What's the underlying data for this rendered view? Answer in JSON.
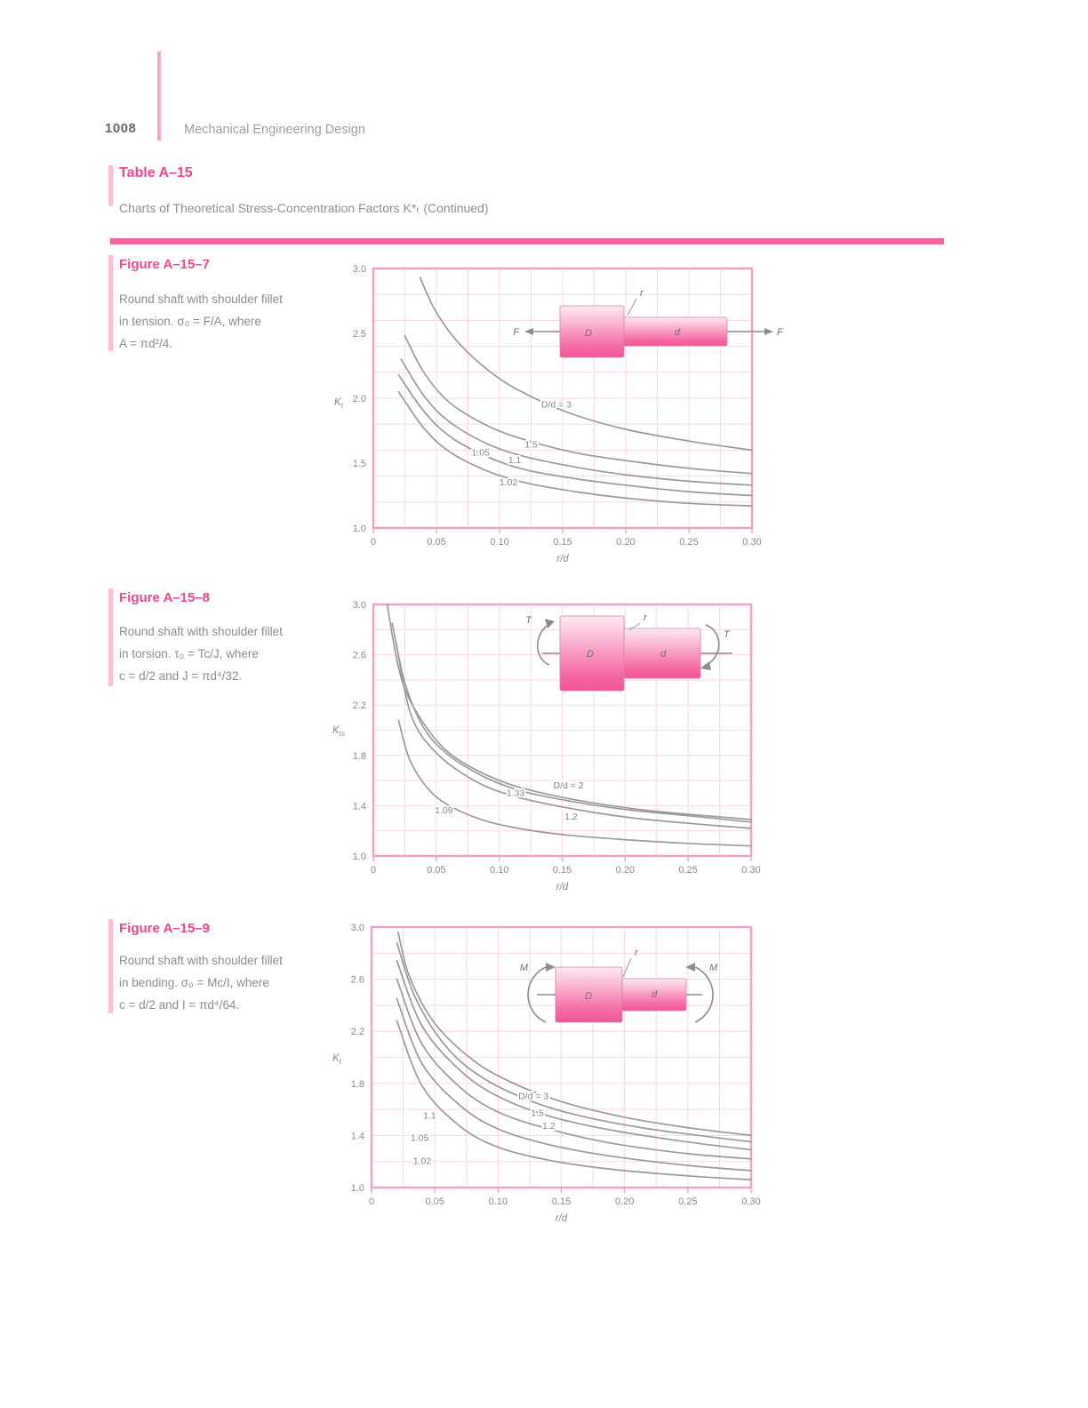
{
  "page": {
    "number": "1008",
    "running_header": "Mechanical Engineering Design"
  },
  "table": {
    "label": "Table A–15",
    "title": "Charts of Theoretical Stress-Concentration Factors K*ₜ (Continued)"
  },
  "colors": {
    "accent_pink": "#ee4890",
    "rule_pink": "#f0669f",
    "frame_pink": "#f49fc6",
    "grid_pink": "#fbd9e8",
    "curve_gray": "#9a9a9a",
    "text_gray": "#8a8a8a",
    "shaft_pink_light": "#fde9f2",
    "shaft_pink_dark": "#f2559a"
  },
  "figures": [
    {
      "title": "Figure A–15–7",
      "caption_lines": [
        "Round shaft with shoulder fillet",
        "in tension. σ₀ = F/A, where",
        "A = πd²/4."
      ],
      "inset": {
        "left_label": "F",
        "right_label": "F",
        "big_label": "D",
        "small_label": "d",
        "fillet_label": "r"
      }
    },
    {
      "title": "Figure A–15–8",
      "caption_lines": [
        "Round shaft with shoulder fillet",
        "in torsion. τ₀ = Tc/J, where",
        "c = d/2 and J = πd⁴/32."
      ],
      "inset": {
        "left_label": "T",
        "right_label": "T",
        "big_label": "D",
        "small_label": "d",
        "fillet_label": "r"
      }
    },
    {
      "title": "Figure A–15–9",
      "caption_lines": [
        "Round shaft with shoulder fillet",
        "in bending. σ₀ = Mc/I, where",
        "c = d/2 and I = πd⁴/64."
      ],
      "inset": {
        "left_label": "M",
        "right_label": "M",
        "big_label": "D",
        "small_label": "d",
        "fillet_label": "r"
      }
    }
  ],
  "chart_data": [
    {
      "type": "line",
      "figure": "A–15–7",
      "title": "Round shaft with shoulder fillet in tension",
      "xlabel": "r/d",
      "ylabel": "Kt",
      "xlim": [
        0,
        0.3
      ],
      "ylim": [
        1.0,
        3.0
      ],
      "xticks": [
        "0",
        "0.05",
        "0.10",
        "0.15",
        "0.20",
        "0.25",
        "0.30"
      ],
      "yticks": [
        "3.0",
        "2.5",
        "2.0",
        "1.5",
        "1.0"
      ],
      "grid_step": {
        "x": 0.025,
        "y": 0.2
      },
      "legend_position": "on-curve",
      "series": [
        {
          "name": "D/d = 3",
          "points": [
            [
              0.037,
              2.93
            ],
            [
              0.05,
              2.66
            ],
            [
              0.07,
              2.4
            ],
            [
              0.1,
              2.15
            ],
            [
              0.13,
              1.99
            ],
            [
              0.16,
              1.87
            ],
            [
              0.2,
              1.76
            ],
            [
              0.25,
              1.67
            ],
            [
              0.3,
              1.6
            ]
          ]
        },
        {
          "name": "1.5",
          "points": [
            [
              0.025,
              2.48
            ],
            [
              0.04,
              2.2
            ],
            [
              0.06,
              1.97
            ],
            [
              0.09,
              1.79
            ],
            [
              0.12,
              1.68
            ],
            [
              0.16,
              1.58
            ],
            [
              0.2,
              1.52
            ],
            [
              0.25,
              1.46
            ],
            [
              0.3,
              1.42
            ]
          ]
        },
        {
          "name": "1.1",
          "points": [
            [
              0.022,
              2.3
            ],
            [
              0.04,
              2.02
            ],
            [
              0.06,
              1.82
            ],
            [
              0.09,
              1.65
            ],
            [
              0.12,
              1.55
            ],
            [
              0.16,
              1.47
            ],
            [
              0.2,
              1.41
            ],
            [
              0.25,
              1.36
            ],
            [
              0.3,
              1.33
            ]
          ]
        },
        {
          "name": "1.05",
          "points": [
            [
              0.02,
              2.18
            ],
            [
              0.04,
              1.9
            ],
            [
              0.06,
              1.71
            ],
            [
              0.09,
              1.55
            ],
            [
              0.12,
              1.45
            ],
            [
              0.16,
              1.38
            ],
            [
              0.2,
              1.33
            ],
            [
              0.25,
              1.28
            ],
            [
              0.3,
              1.25
            ]
          ]
        },
        {
          "name": "1.02",
          "points": [
            [
              0.02,
              2.05
            ],
            [
              0.04,
              1.77
            ],
            [
              0.06,
              1.59
            ],
            [
              0.09,
              1.44
            ],
            [
              0.12,
              1.35
            ],
            [
              0.16,
              1.28
            ],
            [
              0.2,
              1.23
            ],
            [
              0.25,
              1.19
            ],
            [
              0.3,
              1.17
            ]
          ]
        }
      ],
      "curve_labels": [
        {
          "text": "D/d = 3",
          "x": 0.145,
          "y": 1.95
        },
        {
          "text": "1.5",
          "x": 0.125,
          "y": 1.64
        },
        {
          "text": "1.1",
          "x": 0.112,
          "y": 1.52
        },
        {
          "text": "1.05",
          "x": 0.085,
          "y": 1.58
        },
        {
          "text": "1.02",
          "x": 0.107,
          "y": 1.35
        }
      ]
    },
    {
      "type": "line",
      "figure": "A–15–8",
      "title": "Round shaft with shoulder fillet in torsion",
      "xlabel": "r/d",
      "ylabel": "Kts",
      "xlim": [
        0,
        0.3
      ],
      "ylim": [
        1.0,
        3.0
      ],
      "xticks": [
        "0",
        "0.05",
        "0.10",
        "0.15",
        "0.20",
        "0.25",
        "0.30"
      ],
      "yticks": [
        "3.0",
        "2.6",
        "2.2",
        "1.8",
        "1.4",
        "1.0"
      ],
      "grid_step": {
        "x": 0.025,
        "y": 0.2
      },
      "legend_position": "on-curve",
      "series": [
        {
          "name": "D/d = 2",
          "points": [
            [
              0.011,
              3.0
            ],
            [
              0.02,
              2.5
            ],
            [
              0.03,
              2.22
            ],
            [
              0.05,
              1.92
            ],
            [
              0.07,
              1.75
            ],
            [
              0.1,
              1.6
            ],
            [
              0.13,
              1.51
            ],
            [
              0.17,
              1.43
            ],
            [
              0.22,
              1.36
            ],
            [
              0.3,
              1.29
            ]
          ]
        },
        {
          "name": "1.33",
          "points": [
            [
              0.015,
              2.85
            ],
            [
              0.025,
              2.38
            ],
            [
              0.04,
              2.02
            ],
            [
              0.06,
              1.8
            ],
            [
              0.09,
              1.62
            ],
            [
              0.12,
              1.51
            ],
            [
              0.16,
              1.43
            ],
            [
              0.2,
              1.37
            ],
            [
              0.25,
              1.32
            ],
            [
              0.3,
              1.27
            ]
          ]
        },
        {
          "name": "1.2",
          "points": [
            [
              0.018,
              2.7
            ],
            [
              0.03,
              2.12
            ],
            [
              0.05,
              1.82
            ],
            [
              0.08,
              1.6
            ],
            [
              0.11,
              1.48
            ],
            [
              0.15,
              1.39
            ],
            [
              0.2,
              1.31
            ],
            [
              0.25,
              1.26
            ],
            [
              0.3,
              1.22
            ]
          ]
        },
        {
          "name": "1.09",
          "points": [
            [
              0.02,
              2.08
            ],
            [
              0.03,
              1.74
            ],
            [
              0.05,
              1.47
            ],
            [
              0.08,
              1.31
            ],
            [
              0.11,
              1.23
            ],
            [
              0.15,
              1.17
            ],
            [
              0.2,
              1.13
            ],
            [
              0.25,
              1.1
            ],
            [
              0.3,
              1.08
            ]
          ]
        }
      ],
      "curve_labels": [
        {
          "text": "D/d = 2",
          "x": 0.155,
          "y": 1.56
        },
        {
          "text": "1.33",
          "x": 0.113,
          "y": 1.5
        },
        {
          "text": "1.2",
          "x": 0.157,
          "y": 1.31
        },
        {
          "text": "1.09",
          "x": 0.056,
          "y": 1.36
        }
      ]
    },
    {
      "type": "line",
      "figure": "A–15–9",
      "title": "Round shaft with shoulder fillet in bending",
      "xlabel": "r/d",
      "ylabel": "Kt",
      "xlim": [
        0,
        0.3
      ],
      "ylim": [
        1.0,
        3.0
      ],
      "xticks": [
        "0",
        "0.05",
        "0.10",
        "0.15",
        "0.20",
        "0.25",
        "0.30"
      ],
      "yticks": [
        "3.0",
        "2.6",
        "2.2",
        "1.8",
        "1.4",
        "1.0"
      ],
      "grid_step": {
        "x": 0.025,
        "y": 0.2
      },
      "legend_position": "on-curve",
      "series": [
        {
          "name": "D/d = 3",
          "points": [
            [
              0.021,
              2.96
            ],
            [
              0.03,
              2.62
            ],
            [
              0.05,
              2.26
            ],
            [
              0.08,
              1.98
            ],
            [
              0.11,
              1.81
            ],
            [
              0.15,
              1.66
            ],
            [
              0.2,
              1.54
            ],
            [
              0.25,
              1.46
            ],
            [
              0.3,
              1.4
            ]
          ]
        },
        {
          "name": "1.5",
          "points": [
            [
              0.02,
              2.88
            ],
            [
              0.035,
              2.45
            ],
            [
              0.06,
              2.07
            ],
            [
              0.09,
              1.83
            ],
            [
              0.13,
              1.65
            ],
            [
              0.17,
              1.54
            ],
            [
              0.22,
              1.45
            ],
            [
              0.3,
              1.35
            ]
          ]
        },
        {
          "name": "1.2",
          "points": [
            [
              0.02,
              2.74
            ],
            [
              0.04,
              2.24
            ],
            [
              0.07,
              1.9
            ],
            [
              0.1,
              1.7
            ],
            [
              0.14,
              1.55
            ],
            [
              0.19,
              1.44
            ],
            [
              0.25,
              1.35
            ],
            [
              0.3,
              1.29
            ]
          ]
        },
        {
          "name": "1.1",
          "points": [
            [
              0.02,
              2.6
            ],
            [
              0.04,
              2.1
            ],
            [
              0.07,
              1.77
            ],
            [
              0.1,
              1.58
            ],
            [
              0.14,
              1.45
            ],
            [
              0.19,
              1.34
            ],
            [
              0.25,
              1.26
            ],
            [
              0.3,
              1.22
            ]
          ]
        },
        {
          "name": "1.05",
          "points": [
            [
              0.02,
              2.45
            ],
            [
              0.04,
              1.95
            ],
            [
              0.07,
              1.63
            ],
            [
              0.1,
              1.45
            ],
            [
              0.14,
              1.33
            ],
            [
              0.19,
              1.24
            ],
            [
              0.25,
              1.17
            ],
            [
              0.3,
              1.13
            ]
          ]
        },
        {
          "name": "1.02",
          "points": [
            [
              0.02,
              2.28
            ],
            [
              0.04,
              1.78
            ],
            [
              0.07,
              1.47
            ],
            [
              0.1,
              1.31
            ],
            [
              0.14,
              1.21
            ],
            [
              0.19,
              1.14
            ],
            [
              0.25,
              1.09
            ],
            [
              0.3,
              1.06
            ]
          ]
        }
      ],
      "curve_labels": [
        {
          "text": "D/d = 3",
          "x": 0.128,
          "y": 1.7
        },
        {
          "text": "1.5",
          "x": 0.131,
          "y": 1.57
        },
        {
          "text": "1.2",
          "x": 0.14,
          "y": 1.47
        },
        {
          "text": "1.1",
          "x": 0.046,
          "y": 1.55
        },
        {
          "text": "1.05",
          "x": 0.038,
          "y": 1.38
        },
        {
          "text": "1.02",
          "x": 0.04,
          "y": 1.2
        }
      ]
    }
  ]
}
